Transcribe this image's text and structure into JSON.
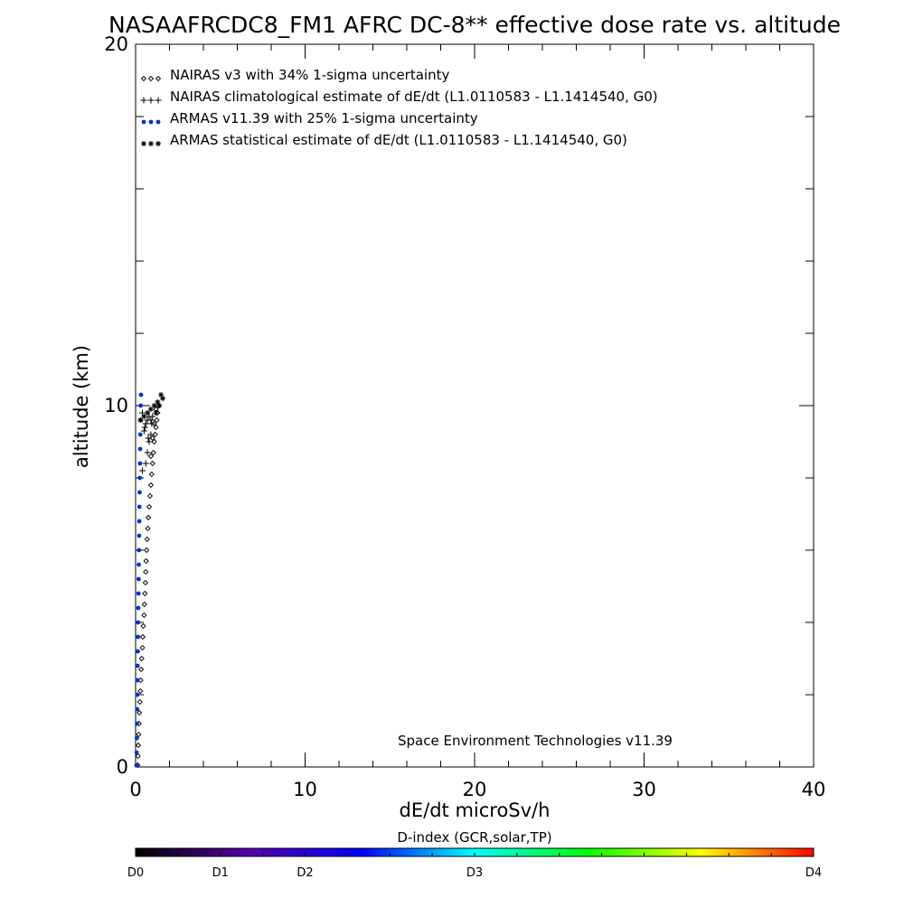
{
  "chart_data": {
    "type": "scatter",
    "title": "NASAAFRCDC8_FM1 AFRC DC-8** effective dose rate vs. altitude",
    "xlabel": "dE/dt microSv/h",
    "ylabel": "altitude (km)",
    "xlim": [
      0,
      40
    ],
    "ylim": [
      0,
      20
    ],
    "x_ticks": [
      "0",
      "10",
      "20",
      "30",
      "40"
    ],
    "y_ticks": [
      "0",
      "10",
      "20"
    ],
    "grid": false,
    "legend_position": "top-left",
    "annotation": "Space Environment Technologies v11.39",
    "series": [
      {
        "name": "NAIRAS v3 with 34% 1-sigma uncertainty",
        "marker": "diamond",
        "color": "#000000",
        "points": [
          [
            0.12,
            0.05
          ],
          [
            0.14,
            0.3
          ],
          [
            0.16,
            0.6
          ],
          [
            0.18,
            0.9
          ],
          [
            0.2,
            1.2
          ],
          [
            0.22,
            1.5
          ],
          [
            0.25,
            1.8
          ],
          [
            0.28,
            2.1
          ],
          [
            0.3,
            2.4
          ],
          [
            0.33,
            2.7
          ],
          [
            0.36,
            3.0
          ],
          [
            0.4,
            3.3
          ],
          [
            0.42,
            3.6
          ],
          [
            0.45,
            3.9
          ],
          [
            0.5,
            4.2
          ],
          [
            0.52,
            4.5
          ],
          [
            0.55,
            4.8
          ],
          [
            0.58,
            5.1
          ],
          [
            0.6,
            5.4
          ],
          [
            0.62,
            5.7
          ],
          [
            0.65,
            6.0
          ],
          [
            0.68,
            6.3
          ],
          [
            0.72,
            6.6
          ],
          [
            0.75,
            6.9
          ],
          [
            0.8,
            7.2
          ],
          [
            0.85,
            7.5
          ],
          [
            0.9,
            7.8
          ],
          [
            0.95,
            8.1
          ],
          [
            1.0,
            8.4
          ],
          [
            1.05,
            8.7
          ],
          [
            1.1,
            9.0
          ],
          [
            1.15,
            9.2
          ],
          [
            1.2,
            9.4
          ],
          [
            1.25,
            9.6
          ],
          [
            1.3,
            9.8
          ],
          [
            1.35,
            10.0
          ],
          [
            1.1,
            9.5
          ],
          [
            1.0,
            9.1
          ],
          [
            0.9,
            8.6
          ],
          [
            1.2,
            9.9
          ]
        ]
      },
      {
        "name": "NAIRAS climatological estimate of dE/dt (L1.0110583 - L1.1414540, G0)",
        "marker": "plus",
        "color": "#000000",
        "points": [
          [
            0.4,
            8.2
          ],
          [
            0.6,
            8.4
          ],
          [
            0.7,
            8.7
          ],
          [
            0.8,
            9.0
          ],
          [
            0.9,
            9.2
          ],
          [
            0.5,
            9.3
          ],
          [
            0.6,
            9.5
          ],
          [
            0.7,
            9.6
          ],
          [
            0.8,
            9.7
          ],
          [
            0.9,
            9.6
          ],
          [
            1.0,
            9.7
          ],
          [
            0.4,
            9.8
          ],
          [
            0.55,
            9.4
          ],
          [
            0.75,
            9.1
          ],
          [
            0.95,
            9.5
          ]
        ]
      },
      {
        "name": "ARMAS v11.39 with 25% 1-sigma uncertainty",
        "marker": "dot",
        "color": "#0033cc",
        "points": [
          [
            0.05,
            0.05
          ],
          [
            0.06,
            0.4
          ],
          [
            0.07,
            0.8
          ],
          [
            0.08,
            1.2
          ],
          [
            0.09,
            1.6
          ],
          [
            0.1,
            2.0
          ],
          [
            0.11,
            2.4
          ],
          [
            0.12,
            2.8
          ],
          [
            0.13,
            3.2
          ],
          [
            0.14,
            3.6
          ],
          [
            0.15,
            4.0
          ],
          [
            0.16,
            4.4
          ],
          [
            0.17,
            4.8
          ],
          [
            0.18,
            5.2
          ],
          [
            0.19,
            5.6
          ],
          [
            0.2,
            6.0
          ],
          [
            0.21,
            6.4
          ],
          [
            0.22,
            6.8
          ],
          [
            0.23,
            7.2
          ],
          [
            0.24,
            7.6
          ],
          [
            0.25,
            8.0
          ],
          [
            0.26,
            8.4
          ],
          [
            0.27,
            8.8
          ],
          [
            0.28,
            9.2
          ],
          [
            0.29,
            9.6
          ],
          [
            0.3,
            10.0
          ],
          [
            0.32,
            10.3
          ]
        ]
      },
      {
        "name": "ARMAS statistical estimate of dE/dt (L1.0110583 - L1.1414540, G0)",
        "marker": "asterisk",
        "color": "#000000",
        "points": [
          [
            0.3,
            9.6
          ],
          [
            0.5,
            9.7
          ],
          [
            0.7,
            9.8
          ],
          [
            0.9,
            9.9
          ],
          [
            1.1,
            10.0
          ],
          [
            1.3,
            10.1
          ],
          [
            1.5,
            10.3
          ],
          [
            1.6,
            10.2
          ],
          [
            1.4,
            10.0
          ],
          [
            1.2,
            9.8
          ]
        ]
      }
    ],
    "colorbar": {
      "label": "D-index (GCR,solar,TP)",
      "tick_labels": [
        "D0",
        "D1",
        "D2",
        "D3",
        "D4"
      ],
      "tick_positions": [
        0,
        0.125,
        0.25,
        0.5,
        1.0
      ],
      "colors": [
        "#000000",
        "#5500aa",
        "#0000ff",
        "#00ffff",
        "#00ff00",
        "#ffff00",
        "#ff0000"
      ]
    }
  }
}
